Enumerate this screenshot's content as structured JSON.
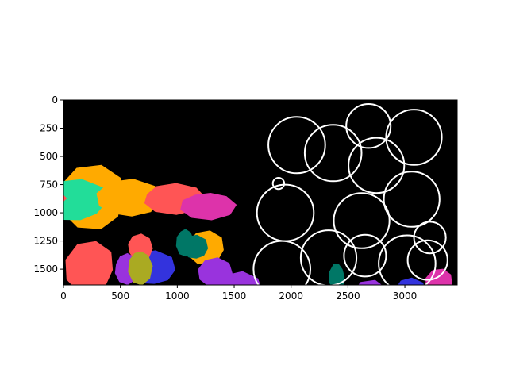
{
  "chart_data": {
    "type": "scatter",
    "title": "",
    "xlabel": "",
    "ylabel": "",
    "xlim": [
      0,
      3460
    ],
    "ylim": [
      1640,
      0
    ],
    "y_inverted": true,
    "xticks": [
      0,
      500,
      1000,
      1500,
      2000,
      2500,
      3000
    ],
    "yticks": [
      0,
      250,
      500,
      750,
      1000,
      1250,
      1500
    ],
    "grid": false,
    "background_color": "#000000",
    "segment_colors": [
      "#3333dd",
      "#ff5555",
      "#dd33aa",
      "#ffaa00",
      "#9933dd",
      "#22dd99",
      "#007766",
      "#aaaa22"
    ],
    "circle_color": "#ffffff",
    "circles": [
      {
        "x": 2050,
        "y": 400,
        "r": 250
      },
      {
        "x": 2370,
        "y": 470,
        "r": 250
      },
      {
        "x": 2680,
        "y": 230,
        "r": 195
      },
      {
        "x": 3080,
        "y": 330,
        "r": 245
      },
      {
        "x": 2750,
        "y": 580,
        "r": 245
      },
      {
        "x": 3060,
        "y": 880,
        "r": 245
      },
      {
        "x": 1890,
        "y": 740,
        "r": 50
      },
      {
        "x": 1950,
        "y": 1000,
        "r": 250
      },
      {
        "x": 2620,
        "y": 1070,
        "r": 245
      },
      {
        "x": 2330,
        "y": 1400,
        "r": 245
      },
      {
        "x": 2650,
        "y": 1380,
        "r": 185
      },
      {
        "x": 3220,
        "y": 1220,
        "r": 140
      },
      {
        "x": 3020,
        "y": 1450,
        "r": 250
      },
      {
        "x": 3200,
        "y": 1420,
        "r": 175
      },
      {
        "x": 1920,
        "y": 1500,
        "r": 250
      }
    ]
  }
}
